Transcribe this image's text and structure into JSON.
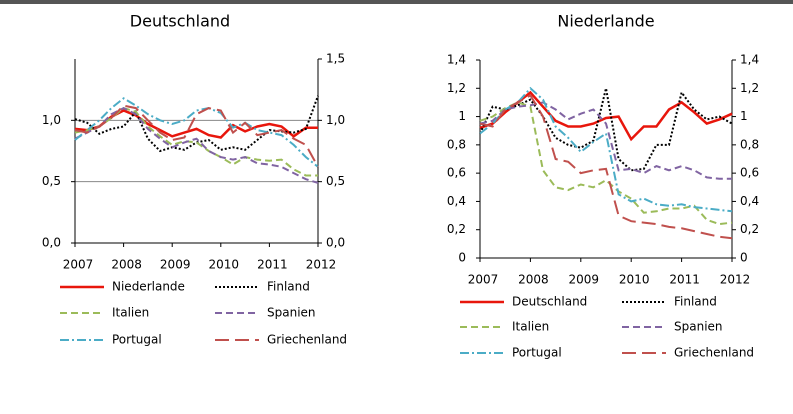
{
  "chart_data": [
    {
      "type": "line",
      "title": "Deutschland",
      "x": [
        2007,
        2007.25,
        2007.5,
        2007.75,
        2008,
        2008.25,
        2008.5,
        2008.75,
        2009,
        2009.25,
        2009.5,
        2009.75,
        2010,
        2010.25,
        2010.5,
        2010.75,
        2011,
        2011.25,
        2011.5,
        2011.75,
        2012
      ],
      "xlim": [
        2007,
        2012
      ],
      "xticks": [
        2007,
        2008,
        2009,
        2010,
        2011,
        2012
      ],
      "ylim": [
        0,
        1.5
      ],
      "yticks": [
        {
          "value": 0,
          "label": "0,0"
        },
        {
          "value": 0.5,
          "label": "0,5"
        },
        {
          "value": 1,
          "label": "1,0"
        }
      ],
      "y2lim": [
        0,
        1.5
      ],
      "y2ticks": [
        {
          "value": 0,
          "label": "0,0"
        },
        {
          "value": 0.5,
          "label": "0,5"
        },
        {
          "value": 1,
          "label": "1,0"
        },
        {
          "value": 1.5,
          "label": "1,5"
        }
      ],
      "grid": true,
      "series": [
        {
          "name": "Niederlande",
          "color": "#e8160c",
          "style": "solid",
          "values": [
            0.93,
            0.92,
            0.95,
            1.03,
            1.08,
            1.04,
            0.97,
            0.92,
            0.87,
            0.9,
            0.93,
            0.88,
            0.86,
            0.96,
            0.91,
            0.95,
            0.97,
            0.95,
            0.87,
            0.94,
            0.94
          ]
        },
        {
          "name": "Finland",
          "color": "#000000",
          "style": "dotted",
          "values": [
            1.01,
            0.98,
            0.89,
            0.93,
            0.95,
            1.07,
            0.85,
            0.75,
            0.78,
            0.76,
            0.82,
            0.84,
            0.76,
            0.78,
            0.76,
            0.84,
            0.92,
            0.91,
            0.9,
            0.93,
            1.2
          ]
        },
        {
          "name": "Italien",
          "color": "#9bbb59",
          "style": "dashed",
          "values": [
            0.9,
            0.92,
            0.95,
            1.02,
            1.1,
            1.07,
            0.95,
            0.87,
            0.8,
            0.83,
            0.82,
            0.75,
            0.7,
            0.64,
            0.7,
            0.68,
            0.67,
            0.68,
            0.6,
            0.55,
            0.55
          ]
        },
        {
          "name": "Spanien",
          "color": "#8064a2",
          "style": "dashed",
          "values": [
            0.85,
            0.9,
            0.95,
            1.05,
            1.1,
            1.05,
            0.93,
            0.85,
            0.78,
            0.82,
            0.85,
            0.75,
            0.7,
            0.68,
            0.7,
            0.65,
            0.64,
            0.62,
            0.57,
            0.52,
            0.49
          ]
        },
        {
          "name": "Portugal",
          "color": "#4bacc6",
          "style": "dashdot",
          "values": [
            0.84,
            0.92,
            1,
            1.1,
            1.18,
            1.12,
            1.05,
            1,
            0.97,
            1,
            1.08,
            1.1,
            1.06,
            0.94,
            0.98,
            0.92,
            0.9,
            0.88,
            0.8,
            0.7,
            0.62
          ]
        },
        {
          "name": "Griechenland",
          "color": "#c0504d",
          "style": "longdash",
          "values": [
            0.92,
            0.9,
            0.95,
            1.02,
            1.12,
            1.1,
            1,
            0.9,
            0.84,
            0.86,
            1.05,
            1.1,
            1.08,
            0.9,
            0.98,
            0.88,
            0.9,
            0.92,
            0.85,
            0.8,
            0.62
          ]
        }
      ]
    },
    {
      "type": "line",
      "title": "Niederlande",
      "x": [
        2007,
        2007.25,
        2007.5,
        2007.75,
        2008,
        2008.25,
        2008.5,
        2008.75,
        2009,
        2009.25,
        2009.5,
        2009.75,
        2010,
        2010.25,
        2010.5,
        2010.75,
        2011,
        2011.25,
        2011.5,
        2011.75,
        2012
      ],
      "xlim": [
        2007,
        2012
      ],
      "xticks": [
        2007,
        2008,
        2009,
        2010,
        2011,
        2012
      ],
      "ylim": [
        0,
        1.4
      ],
      "yticks": [
        0,
        {
          "value": 0.2,
          "label": "0,2"
        },
        {
          "value": 0.4,
          "label": "0,4"
        },
        {
          "value": 0.6,
          "label": "0,6"
        },
        {
          "value": 0.8,
          "label": "0,8"
        },
        1,
        {
          "value": 1.2,
          "label": "1,2"
        },
        {
          "value": 1.4,
          "label": "1,4"
        }
      ],
      "y2lim": [
        0,
        1.4
      ],
      "y2ticks": [
        0,
        {
          "value": 0.2,
          "label": "0,2"
        },
        {
          "value": 0.4,
          "label": "0,4"
        },
        {
          "value": 0.6,
          "label": "0,6"
        },
        {
          "value": 0.8,
          "label": "0,8"
        },
        1,
        {
          "value": 1.2,
          "label": "1,2"
        },
        {
          "value": 1.4,
          "label": "1,4"
        }
      ],
      "grid": false,
      "series": [
        {
          "name": "Deutschland",
          "color": "#e8160c",
          "style": "solid",
          "values": [
            0.92,
            0.95,
            1.03,
            1.1,
            1.17,
            1.07,
            0.97,
            0.93,
            0.93,
            0.95,
            0.99,
            1,
            0.84,
            0.93,
            0.93,
            1.05,
            1.1,
            1.03,
            0.95,
            0.98,
            1.02
          ]
        },
        {
          "name": "Finland",
          "color": "#000000",
          "style": "dotted",
          "values": [
            0.88,
            1.07,
            1.05,
            1.08,
            1.12,
            1,
            0.85,
            0.8,
            0.78,
            0.83,
            1.2,
            0.7,
            0.62,
            0.63,
            0.8,
            0.8,
            1.17,
            1.05,
            0.98,
            1,
            0.95
          ]
        },
        {
          "name": "Italien",
          "color": "#9bbb59",
          "style": "dashed",
          "values": [
            0.97,
            1,
            1.06,
            1.1,
            1.07,
            0.62,
            0.5,
            0.48,
            0.52,
            0.5,
            0.55,
            0.47,
            0.42,
            0.32,
            0.33,
            0.35,
            0.35,
            0.37,
            0.27,
            0.24,
            0.25
          ]
        },
        {
          "name": "Spanien",
          "color": "#8064a2",
          "style": "dashed",
          "values": [
            0.95,
            0.97,
            1.05,
            1.07,
            1.08,
            1.1,
            1.05,
            0.98,
            1.02,
            1.05,
            0.95,
            0.62,
            0.63,
            0.6,
            0.65,
            0.62,
            0.65,
            0.62,
            0.57,
            0.56,
            0.56
          ]
        },
        {
          "name": "Portugal",
          "color": "#4bacc6",
          "style": "dashdot",
          "values": [
            0.88,
            0.95,
            1.05,
            1.1,
            1.2,
            1.12,
            0.93,
            0.85,
            0.75,
            0.82,
            0.88,
            0.45,
            0.4,
            0.42,
            0.38,
            0.37,
            0.38,
            0.36,
            0.35,
            0.34,
            0.33
          ]
        },
        {
          "name": "Griechenland",
          "color": "#c0504d",
          "style": "longdash",
          "values": [
            0.95,
            0.93,
            1.05,
            1.1,
            1.15,
            1,
            0.7,
            0.68,
            0.6,
            0.62,
            0.63,
            0.3,
            0.26,
            0.25,
            0.24,
            0.22,
            0.21,
            0.19,
            0.17,
            0.15,
            0.14
          ]
        }
      ]
    }
  ]
}
